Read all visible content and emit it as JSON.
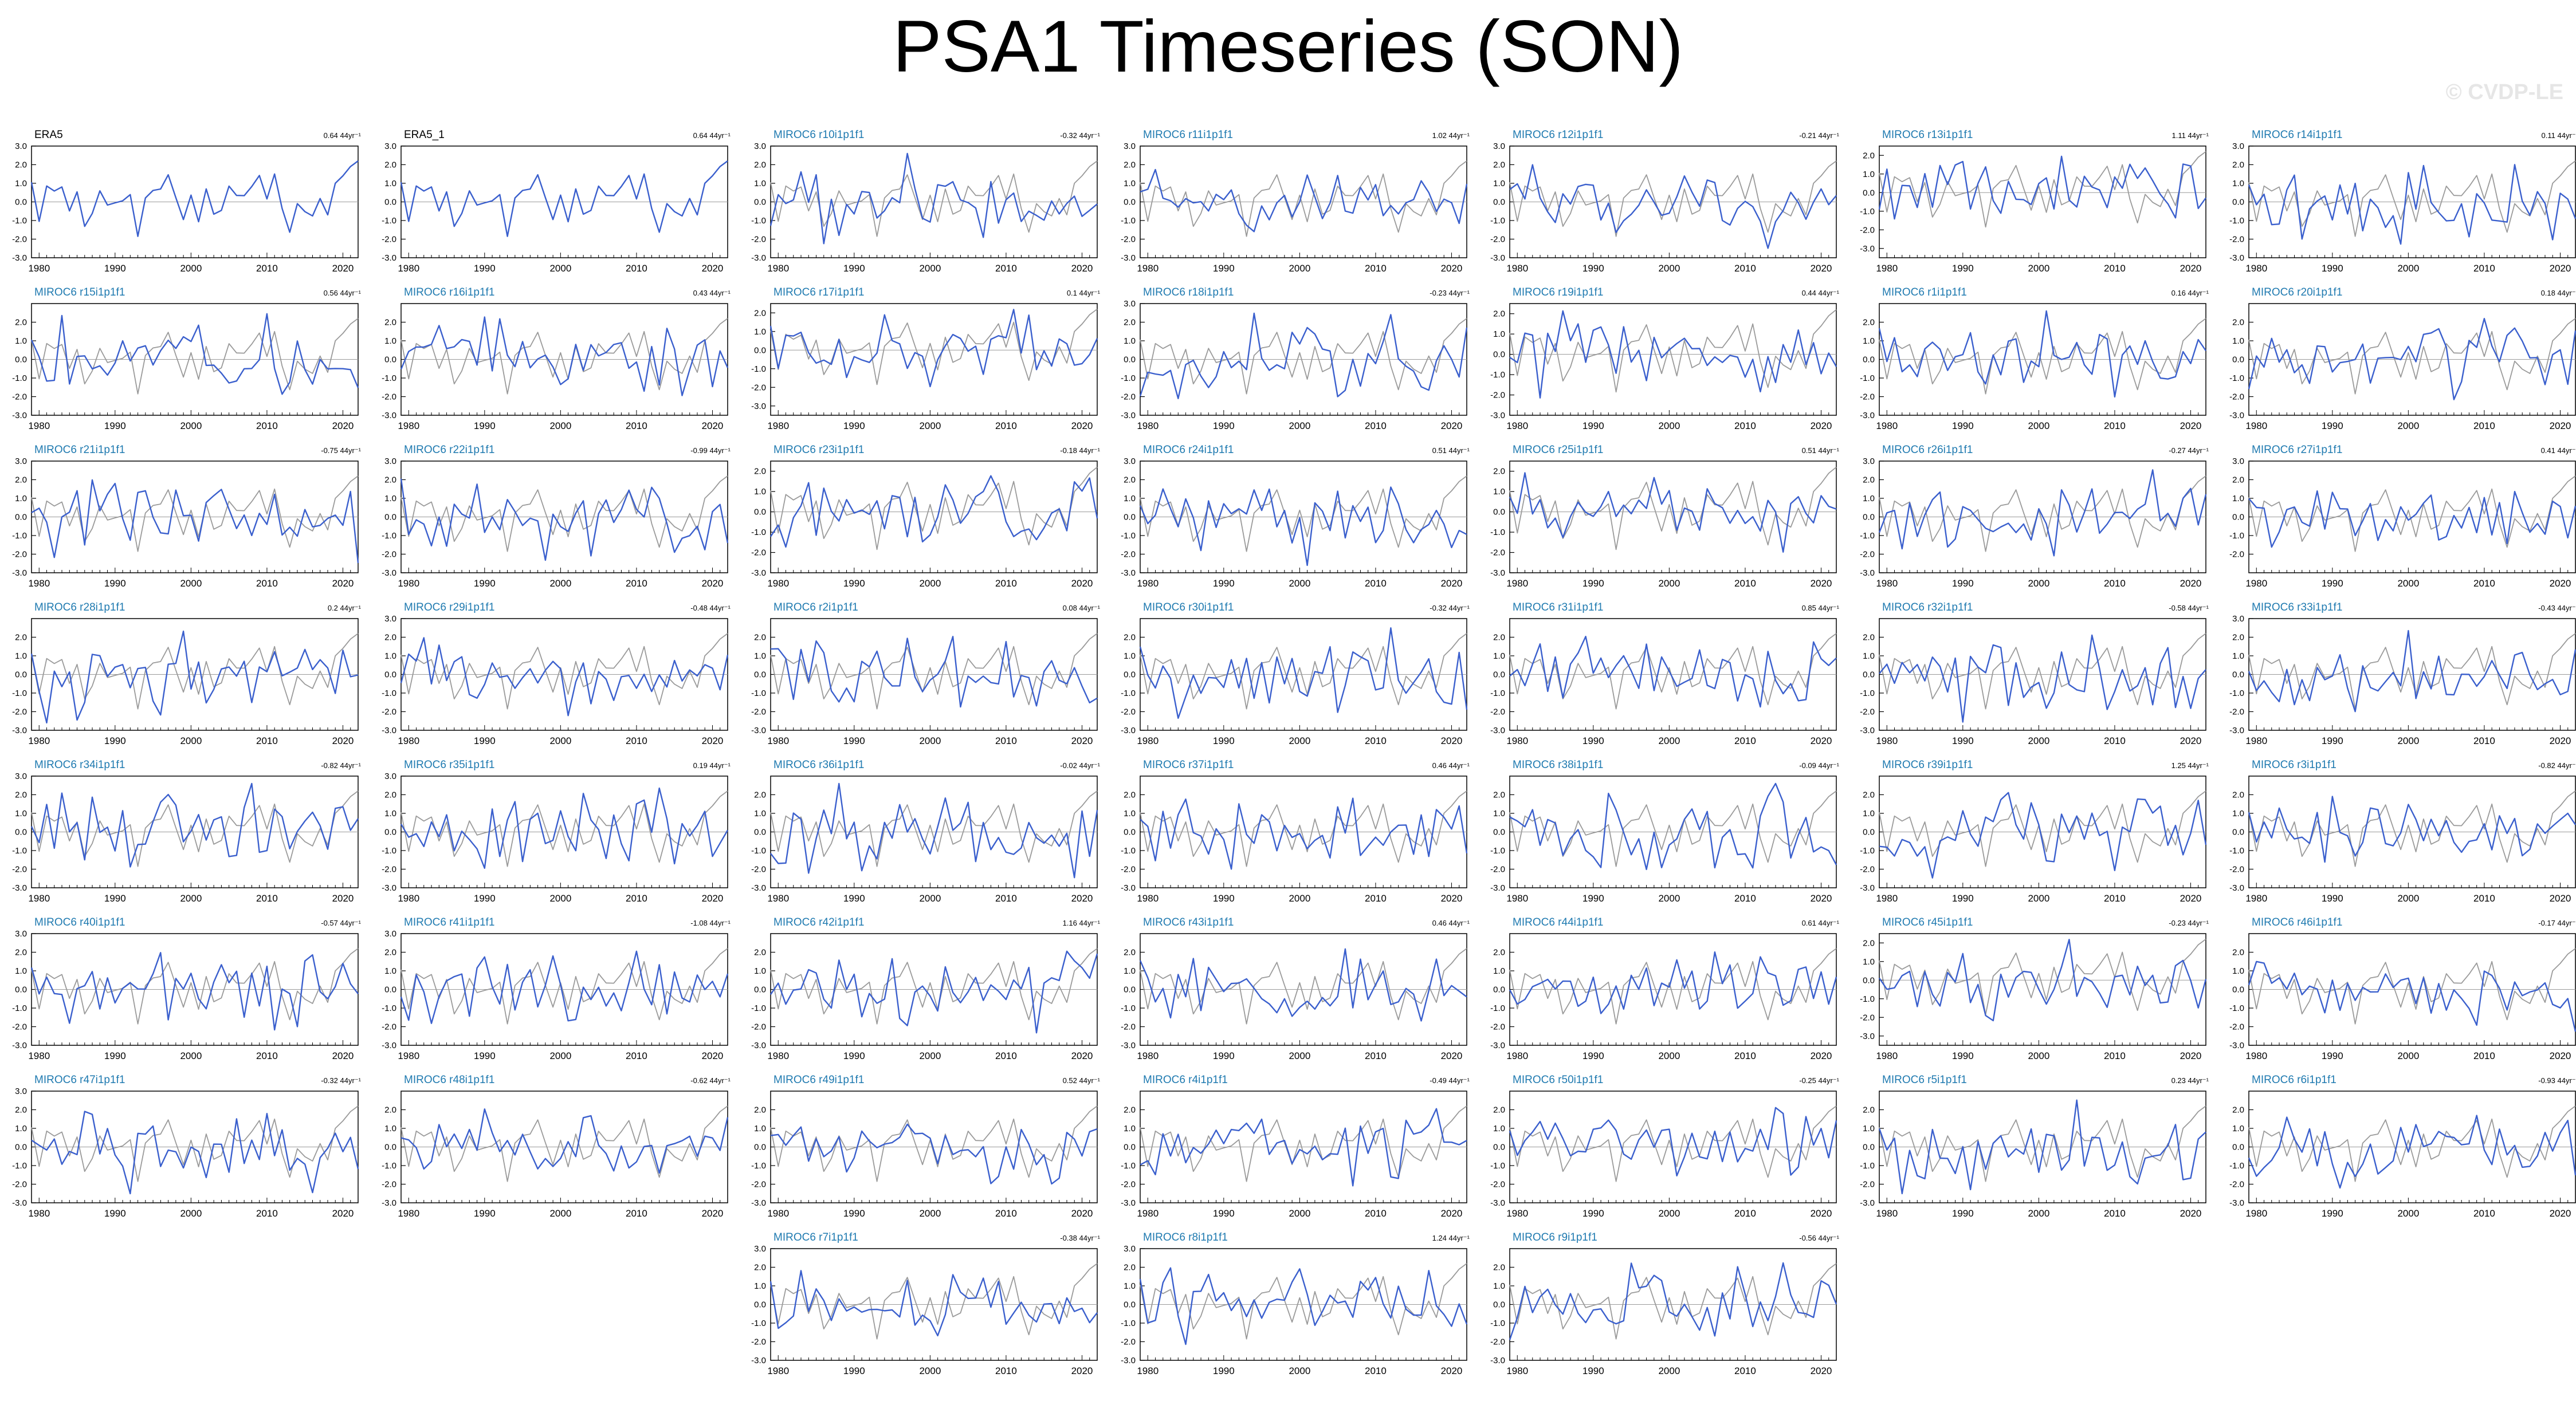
{
  "title": "PSA1 Timeseries (SON)",
  "watermark": "© CVDP-LE",
  "colors": {
    "model_line": "#3a5fcd",
    "obs_line": "#9a9a9a",
    "obs_line_primary": "#3a5fcd",
    "model_title": "#1f7ab0",
    "obs_title": "#000000"
  },
  "chart_data": {
    "type": "line",
    "xlabel": "",
    "ylabel": "",
    "x_ticks": [
      1980,
      1990,
      2000,
      2010,
      2020
    ],
    "xlim": [
      1979,
      2022
    ],
    "trend_unit": "44yr⁻¹",
    "reference_series": "ERA5",
    "panels": [
      {
        "name": "ERA5",
        "trend": "0.64",
        "obs": true,
        "ylim": [
          -3,
          3
        ],
        "yticks": [
          "3.0",
          "2.0",
          "1.0",
          "0.0",
          "-1.0",
          "-2.0",
          "-3.0"
        ]
      },
      {
        "name": "ERA5_1",
        "trend": "0.64",
        "obs": true,
        "ylim": [
          -3,
          3
        ],
        "yticks": [
          "3.0",
          "2.0",
          "1.0",
          "0.0",
          "-1.0",
          "-2.0",
          "-3.0"
        ]
      },
      {
        "name": "MIROC6 r10i1p1f1",
        "trend": "-0.32",
        "ylim": [
          -3,
          3
        ],
        "yticks": [
          "3.0",
          "2.0",
          "1.0",
          "0.0",
          "-1.0",
          "-2.0",
          "-3.0"
        ]
      },
      {
        "name": "MIROC6 r11i1p1f1",
        "trend": "1.02",
        "ylim": [
          -3,
          3
        ],
        "yticks": [
          "3.0",
          "2.0",
          "1.0",
          "0.0",
          "-1.0",
          "-2.0",
          "-3.0"
        ]
      },
      {
        "name": "MIROC6 r12i1p1f1",
        "trend": "-0.21",
        "ylim": [
          -3,
          3
        ],
        "yticks": [
          "3.0",
          "2.0",
          "1.0",
          "0.0",
          "-1.0",
          "-2.0",
          "-3.0"
        ]
      },
      {
        "name": "MIROC6 r13i1p1f1",
        "trend": "1.11",
        "ylim": [
          -3.5,
          2.5
        ],
        "yticks": [
          "2.0",
          "1.0",
          "0.0",
          "-1.0",
          "-2.0",
          "-3.0"
        ]
      },
      {
        "name": "MIROC6 r14i1p1f1",
        "trend": "0.11",
        "ylim": [
          -3,
          3
        ],
        "yticks": [
          "3.0",
          "2.0",
          "1.0",
          "0.0",
          "-1.0",
          "-2.0",
          "-3.0"
        ]
      },
      {
        "name": "MIROC6 r15i1p1f1",
        "trend": "0.56",
        "ylim": [
          -3,
          3
        ],
        "yticks": [
          "2.0",
          "1.0",
          "0.0",
          "-1.0",
          "-2.0",
          "-3.0"
        ]
      },
      {
        "name": "MIROC6 r16i1p1f1",
        "trend": "0.43",
        "ylim": [
          -3,
          3
        ],
        "yticks": [
          "2.0",
          "1.0",
          "0.0",
          "-1.0",
          "-2.0",
          "-3.0"
        ]
      },
      {
        "name": "MIROC6 r17i1p1f1",
        "trend": "0.1",
        "ylim": [
          -3.5,
          2.5
        ],
        "yticks": [
          "2.0",
          "1.0",
          "0.0",
          "-1.0",
          "-2.0",
          "-3.0"
        ]
      },
      {
        "name": "MIROC6 r18i1p1f1",
        "trend": "-0.23",
        "ylim": [
          -3,
          3
        ],
        "yticks": [
          "3.0",
          "2.0",
          "1.0",
          "0.0",
          "-1.0",
          "-2.0",
          "-3.0"
        ]
      },
      {
        "name": "MIROC6 r19i1p1f1",
        "trend": "0.44",
        "ylim": [
          -3,
          2.5
        ],
        "yticks": [
          "2.0",
          "1.0",
          "0.0",
          "-1.0",
          "-2.0",
          "-3.0"
        ]
      },
      {
        "name": "MIROC6 r1i1p1f1",
        "trend": "0.16",
        "ylim": [
          -3,
          3
        ],
        "yticks": [
          "2.0",
          "1.0",
          "0.0",
          "-1.0",
          "-2.0",
          "-3.0"
        ]
      },
      {
        "name": "MIROC6 r20i1p1f1",
        "trend": "0.18",
        "ylim": [
          -3,
          3
        ],
        "yticks": [
          "2.0",
          "1.0",
          "0.0",
          "-1.0",
          "-2.0",
          "-3.0"
        ]
      },
      {
        "name": "MIROC6 r21i1p1f1",
        "trend": "-0.75",
        "ylim": [
          -3,
          3
        ],
        "yticks": [
          "3.0",
          "2.0",
          "1.0",
          "0.0",
          "-1.0",
          "-2.0",
          "-3.0"
        ]
      },
      {
        "name": "MIROC6 r22i1p1f1",
        "trend": "-0.99",
        "ylim": [
          -3,
          3
        ],
        "yticks": [
          "3.0",
          "2.0",
          "1.0",
          "0.0",
          "-1.0",
          "-2.0",
          "-3.0"
        ]
      },
      {
        "name": "MIROC6 r23i1p1f1",
        "trend": "-0.18",
        "ylim": [
          -3,
          2.5
        ],
        "yticks": [
          "2.0",
          "1.0",
          "0.0",
          "-1.0",
          "-2.0",
          "-3.0"
        ]
      },
      {
        "name": "MIROC6 r24i1p1f1",
        "trend": "0.51",
        "ylim": [
          -3,
          3
        ],
        "yticks": [
          "3.0",
          "2.0",
          "1.0",
          "0.0",
          "-1.0",
          "-2.0",
          "-3.0"
        ]
      },
      {
        "name": "MIROC6 r25i1p1f1",
        "trend": "0.51",
        "ylim": [
          -3,
          2.5
        ],
        "yticks": [
          "2.0",
          "1.0",
          "0.0",
          "-1.0",
          "-2.0",
          "-3.0"
        ]
      },
      {
        "name": "MIROC6 r26i1p1f1",
        "trend": "-0.27",
        "ylim": [
          -3,
          3
        ],
        "yticks": [
          "3.0",
          "2.0",
          "1.0",
          "0.0",
          "-1.0",
          "-2.0",
          "-3.0"
        ]
      },
      {
        "name": "MIROC6 r27i1p1f1",
        "trend": "0.41",
        "ylim": [
          -3,
          3
        ],
        "yticks": [
          "3.0",
          "2.0",
          "1.0",
          "0.0",
          "-1.0",
          "-2.0"
        ]
      },
      {
        "name": "MIROC6 r28i1p1f1",
        "trend": "0.2",
        "ylim": [
          -3,
          3
        ],
        "yticks": [
          "2.0",
          "1.0",
          "0.0",
          "-1.0",
          "-2.0",
          "-3.0"
        ]
      },
      {
        "name": "MIROC6 r29i1p1f1",
        "trend": "-0.48",
        "ylim": [
          -3,
          3
        ],
        "yticks": [
          "3.0",
          "2.0",
          "1.0",
          "0.0",
          "-1.0",
          "-2.0",
          "-3.0"
        ]
      },
      {
        "name": "MIROC6 r2i1p1f1",
        "trend": "0.08",
        "ylim": [
          -3,
          3
        ],
        "yticks": [
          "2.0",
          "1.0",
          "0.0",
          "-1.0",
          "-2.0",
          "-3.0"
        ]
      },
      {
        "name": "MIROC6 r30i1p1f1",
        "trend": "-0.32",
        "ylim": [
          -3,
          3
        ],
        "yticks": [
          "2.0",
          "1.0",
          "0.0",
          "-1.0",
          "-2.0",
          "-3.0"
        ]
      },
      {
        "name": "MIROC6 r31i1p1f1",
        "trend": "0.85",
        "ylim": [
          -3,
          3
        ],
        "yticks": [
          "2.0",
          "1.0",
          "0.0",
          "-1.0",
          "-2.0",
          "-3.0"
        ]
      },
      {
        "name": "MIROC6 r32i1p1f1",
        "trend": "-0.58",
        "ylim": [
          -3,
          3
        ],
        "yticks": [
          "2.0",
          "1.0",
          "0.0",
          "-1.0",
          "-2.0",
          "-3.0"
        ]
      },
      {
        "name": "MIROC6 r33i1p1f1",
        "trend": "-0.43",
        "ylim": [
          -3,
          3
        ],
        "yticks": [
          "3.0",
          "2.0",
          "1.0",
          "0.0",
          "-1.0",
          "-2.0",
          "-3.0"
        ]
      },
      {
        "name": "MIROC6 r34i1p1f1",
        "trend": "-0.82",
        "ylim": [
          -3,
          3
        ],
        "yticks": [
          "3.0",
          "2.0",
          "1.0",
          "0.0",
          "-1.0",
          "-2.0",
          "-3.0"
        ]
      },
      {
        "name": "MIROC6 r35i1p1f1",
        "trend": "0.19",
        "ylim": [
          -3,
          3
        ],
        "yticks": [
          "3.0",
          "2.0",
          "1.0",
          "0.0",
          "-1.0",
          "-2.0",
          "-3.0"
        ]
      },
      {
        "name": "MIROC6 r36i1p1f1",
        "trend": "-0.02",
        "ylim": [
          -3,
          3
        ],
        "yticks": [
          "2.0",
          "1.0",
          "0.0",
          "-1.0",
          "-2.0",
          "-3.0"
        ]
      },
      {
        "name": "MIROC6 r37i1p1f1",
        "trend": "0.46",
        "ylim": [
          -3,
          3
        ],
        "yticks": [
          "2.0",
          "1.0",
          "0.0",
          "-1.0",
          "-2.0",
          "-3.0"
        ]
      },
      {
        "name": "MIROC6 r38i1p1f1",
        "trend": "-0.09",
        "ylim": [
          -3,
          3
        ],
        "yticks": [
          "2.0",
          "1.0",
          "0.0",
          "-1.0",
          "-2.0",
          "-3.0"
        ]
      },
      {
        "name": "MIROC6 r39i1p1f1",
        "trend": "1.25",
        "ylim": [
          -3,
          3
        ],
        "yticks": [
          "2.0",
          "1.0",
          "0.0",
          "-1.0",
          "-2.0",
          "-3.0"
        ]
      },
      {
        "name": "MIROC6 r3i1p1f1",
        "trend": "-0.82",
        "ylim": [
          -3,
          3
        ],
        "yticks": [
          "2.0",
          "1.0",
          "0.0",
          "-1.0",
          "-2.0",
          "-3.0"
        ]
      },
      {
        "name": "MIROC6 r40i1p1f1",
        "trend": "-0.57",
        "ylim": [
          -3,
          3
        ],
        "yticks": [
          "3.0",
          "2.0",
          "1.0",
          "0.0",
          "-1.0",
          "-2.0",
          "-3.0"
        ]
      },
      {
        "name": "MIROC6 r41i1p1f1",
        "trend": "-1.08",
        "ylim": [
          -3,
          3
        ],
        "yticks": [
          "3.0",
          "2.0",
          "1.0",
          "0.0",
          "-1.0",
          "-2.0",
          "-3.0"
        ]
      },
      {
        "name": "MIROC6 r42i1p1f1",
        "trend": "1.16",
        "ylim": [
          -3,
          3
        ],
        "yticks": [
          "2.0",
          "1.0",
          "0.0",
          "-1.0",
          "-2.0",
          "-3.0"
        ]
      },
      {
        "name": "MIROC6 r43i1p1f1",
        "trend": "0.46",
        "ylim": [
          -3,
          3
        ],
        "yticks": [
          "2.0",
          "1.0",
          "0.0",
          "-1.0",
          "-2.0",
          "-3.0"
        ]
      },
      {
        "name": "MIROC6 r44i1p1f1",
        "trend": "0.61",
        "ylim": [
          -3,
          3
        ],
        "yticks": [
          "2.0",
          "1.0",
          "0.0",
          "-1.0",
          "-2.0",
          "-3.0"
        ]
      },
      {
        "name": "MIROC6 r45i1p1f1",
        "trend": "-0.23",
        "ylim": [
          -3.5,
          2.5
        ],
        "yticks": [
          "2.0",
          "1.0",
          "0.0",
          "-1.0",
          "-2.0",
          "-3.0"
        ]
      },
      {
        "name": "MIROC6 r46i1p1f1",
        "trend": "-0.17",
        "ylim": [
          -3,
          3
        ],
        "yticks": [
          "2.0",
          "1.0",
          "0.0",
          "-1.0",
          "-2.0",
          "-3.0"
        ]
      },
      {
        "name": "MIROC6 r47i1p1f1",
        "trend": "-0.32",
        "ylim": [
          -3,
          3
        ],
        "yticks": [
          "3.0",
          "2.0",
          "1.0",
          "0.0",
          "-1.0",
          "-2.0",
          "-3.0"
        ]
      },
      {
        "name": "MIROC6 r48i1p1f1",
        "trend": "-0.62",
        "ylim": [
          -3,
          3
        ],
        "yticks": [
          "2.0",
          "1.0",
          "0.0",
          "-1.0",
          "-2.0",
          "-3.0"
        ]
      },
      {
        "name": "MIROC6 r49i1p1f1",
        "trend": "0.52",
        "ylim": [
          -3,
          3
        ],
        "yticks": [
          "2.0",
          "1.0",
          "0.0",
          "-1.0",
          "-2.0",
          "-3.0"
        ]
      },
      {
        "name": "MIROC6 r4i1p1f1",
        "trend": "-0.49",
        "ylim": [
          -3,
          3
        ],
        "yticks": [
          "2.0",
          "1.0",
          "0.0",
          "-1.0",
          "-2.0",
          "-3.0"
        ]
      },
      {
        "name": "MIROC6 r50i1p1f1",
        "trend": "-0.25",
        "ylim": [
          -3,
          3
        ],
        "yticks": [
          "2.0",
          "1.0",
          "0.0",
          "-1.0",
          "-2.0",
          "-3.0"
        ]
      },
      {
        "name": "MIROC6 r5i1p1f1",
        "trend": "0.23",
        "ylim": [
          -3,
          3
        ],
        "yticks": [
          "2.0",
          "1.0",
          "0.0",
          "-1.0",
          "-2.0",
          "-3.0"
        ]
      },
      {
        "name": "MIROC6 r6i1p1f1",
        "trend": "-0.93",
        "ylim": [
          -3,
          3
        ],
        "yticks": [
          "2.0",
          "1.0",
          "0.0",
          "-1.0",
          "-2.0",
          "-3.0"
        ]
      },
      {
        "name": "MIROC6 r7i1p1f1",
        "trend": "-0.38",
        "ylim": [
          -3,
          3
        ],
        "yticks": [
          "3.0",
          "2.0",
          "1.0",
          "0.0",
          "-1.0",
          "-2.0",
          "-3.0"
        ]
      },
      {
        "name": "MIROC6 r8i1p1f1",
        "trend": "1.24",
        "ylim": [
          -3,
          3
        ],
        "yticks": [
          "3.0",
          "2.0",
          "1.0",
          "0.0",
          "-1.0",
          "-2.0",
          "-3.0"
        ]
      },
      {
        "name": "MIROC6 r9i1p1f1",
        "trend": "-0.56",
        "ylim": [
          -3,
          3
        ],
        "yticks": [
          "2.0",
          "1.0",
          "0.0",
          "-1.0",
          "-2.0",
          "-3.0"
        ]
      }
    ]
  }
}
